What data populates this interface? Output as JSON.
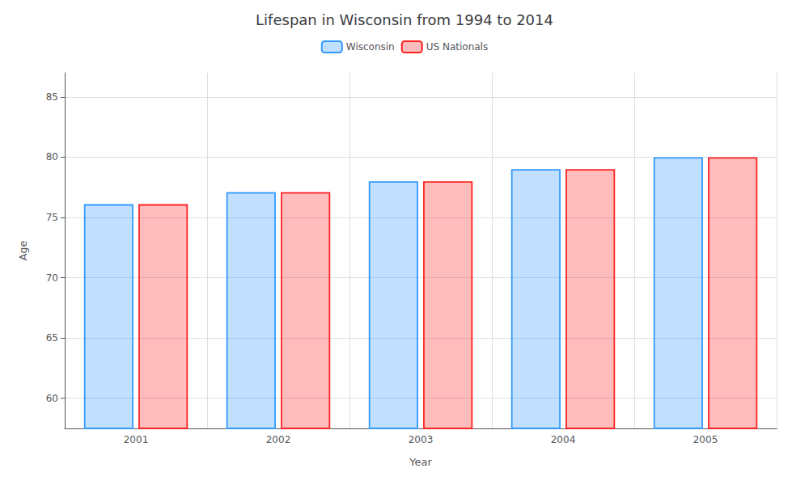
{
  "chart_data": {
    "type": "bar",
    "title": "Lifespan in Wisconsin from 1994 to 2014",
    "x_label": "Year",
    "y_label": "Age",
    "categories": [
      "2001",
      "2002",
      "2003",
      "2004",
      "2005"
    ],
    "series": [
      {
        "name": "Wisconsin",
        "color": "#3399ff",
        "values": [
          76.1,
          77.1,
          78.0,
          79.0,
          80.0
        ]
      },
      {
        "name": "US Nationals",
        "color": "#ff2222",
        "values": [
          76.1,
          77.1,
          78.0,
          79.0,
          80.0
        ]
      }
    ],
    "ylim": [
      57.5,
      87
    ],
    "yticks": [
      60,
      65,
      70,
      75,
      80,
      85
    ],
    "grid": true,
    "legend": "top"
  }
}
